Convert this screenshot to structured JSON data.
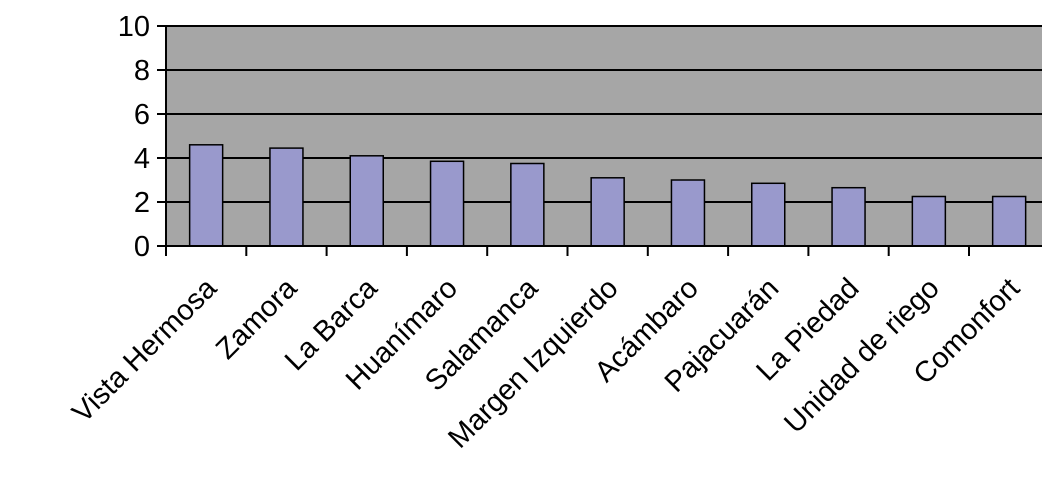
{
  "chart_data": {
    "type": "bar",
    "title": "",
    "xlabel": "",
    "ylabel": "",
    "categories": [
      "Vista Hermosa",
      "Zamora",
      "La Barca",
      "Huanímaro",
      "Salamanca",
      "Margen Izquierdo",
      "Acámbaro",
      "Pajacuarán",
      "La Piedad",
      "Unidad de riego",
      "Comonfort"
    ],
    "values": [
      4.6,
      4.45,
      4.1,
      3.85,
      3.75,
      3.1,
      3.0,
      2.85,
      2.65,
      2.25,
      2.25
    ],
    "ylim": [
      0,
      10
    ],
    "yticks": [
      0,
      2,
      4,
      6,
      8,
      10
    ],
    "grid": true,
    "legend": "none",
    "colors": {
      "plot_background": "#a6a6a6",
      "bar_fill": "#9999cc",
      "bar_stroke": "#000000",
      "gridline": "#000000"
    }
  }
}
